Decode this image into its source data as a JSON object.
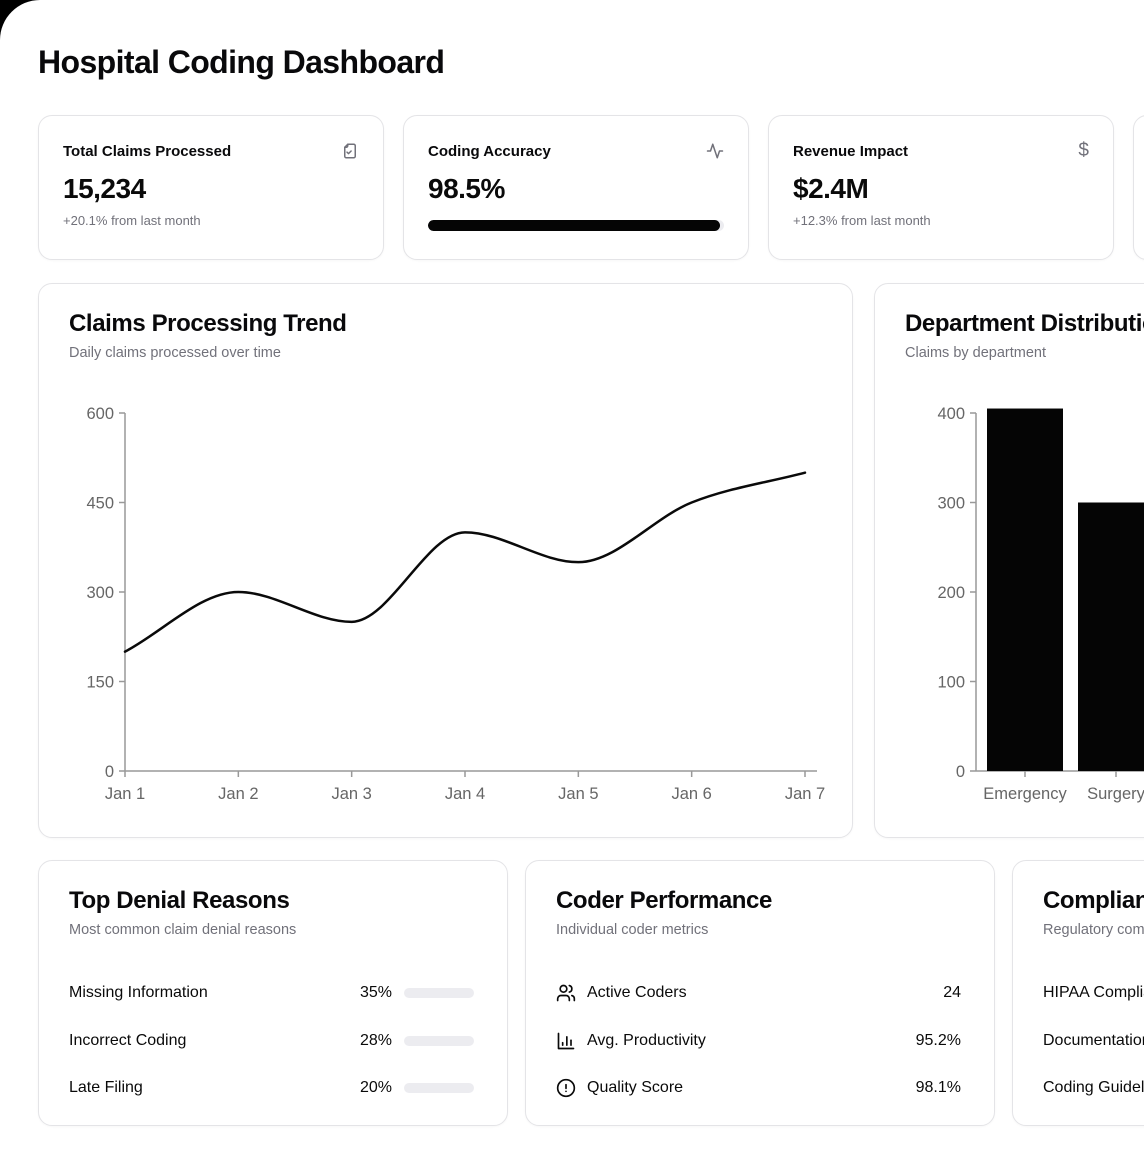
{
  "page": {
    "title": "Hospital Coding Dashboard"
  },
  "stats": [
    {
      "label": "Total Claims Processed",
      "icon": "file-check-icon",
      "value": "15,234",
      "subtext": "+20.1% from last month"
    },
    {
      "label": "Coding Accuracy",
      "icon": "activity-icon",
      "value": "98.5%",
      "progress_pct": 98.5
    },
    {
      "label": "Revenue Impact",
      "icon": "dollar-sign-icon",
      "value": "$2.4M",
      "subtext": "+12.3% from last month"
    }
  ],
  "line_chart_card": {
    "title": "Claims Processing Trend",
    "subtitle": "Daily claims processed over time"
  },
  "bar_chart_card": {
    "title": "Department Distribution",
    "subtitle": "Claims by department"
  },
  "chart_data": [
    {
      "type": "line",
      "title": "Claims Processing Trend",
      "x": [
        "Jan 1",
        "Jan 2",
        "Jan 3",
        "Jan 4",
        "Jan 5",
        "Jan 6",
        "Jan 7"
      ],
      "series": [
        {
          "name": "claims",
          "values": [
            200,
            300,
            250,
            400,
            350,
            450,
            500
          ]
        }
      ],
      "xlabel": "",
      "ylabel": "",
      "ylim": [
        0,
        600
      ],
      "yticks": [
        0,
        150,
        300,
        450,
        600
      ],
      "grid": false,
      "legend": false,
      "line_color": "#0a0a0a",
      "axis_color": "#999999",
      "tick_text_color": "#666666"
    },
    {
      "type": "bar",
      "title": "Department Distribution",
      "categories": [
        "Emergency",
        "Surgery"
      ],
      "values": [
        405,
        300
      ],
      "xlabel": "",
      "ylabel": "",
      "ylim": [
        0,
        400
      ],
      "yticks": [
        0,
        100,
        200,
        300,
        400
      ],
      "grid": false,
      "legend": false,
      "bar_color": "#050505",
      "axis_color": "#999999",
      "tick_text_color": "#666666"
    }
  ],
  "denials": {
    "title": "Top Denial Reasons",
    "subtitle": "Most common claim denial reasons",
    "rows": [
      {
        "label": "Missing Information",
        "pct_label": "35%",
        "pct": 35
      },
      {
        "label": "Incorrect Coding",
        "pct_label": "28%",
        "pct": 28
      },
      {
        "label": "Late Filing",
        "pct_label": "20%",
        "pct": 20
      }
    ]
  },
  "coders": {
    "title": "Coder Performance",
    "subtitle": "Individual coder metrics",
    "rows": [
      {
        "icon": "users-icon",
        "label": "Active Coders",
        "value": "24"
      },
      {
        "icon": "bar-chart-icon",
        "label": "Avg. Productivity",
        "value": "95.2%"
      },
      {
        "icon": "alert-circle-icon",
        "label": "Quality Score",
        "value": "98.1%"
      }
    ]
  },
  "compliance": {
    "title": "Compliance Status",
    "subtitle": "Regulatory compliance overview",
    "rows": [
      {
        "label": "HIPAA Compliance"
      },
      {
        "label": "Documentation"
      },
      {
        "label": "Coding Guidelines"
      }
    ]
  },
  "colors": {
    "accent": "#050505",
    "muted_text": "#71717a",
    "border": "#e4e4e7",
    "track": "#ececf0",
    "axis": "#999999",
    "axis_text": "#666666"
  }
}
